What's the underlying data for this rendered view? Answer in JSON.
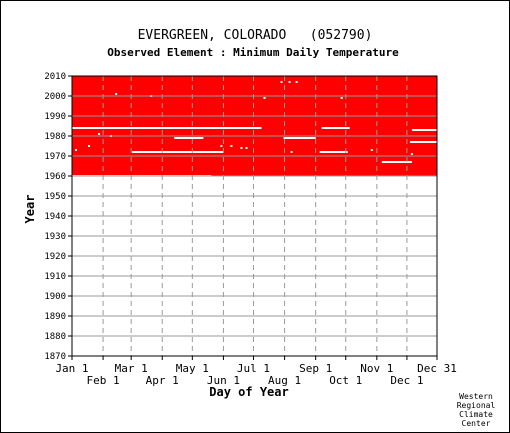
{
  "chart_data": {
    "type": "heatmap",
    "title": "EVERGREEN, COLORADO   (052790)",
    "subtitle": "Observed Element : Minimum Daily Temperature",
    "xlabel": "Day of Year",
    "ylabel": "Year",
    "x_ticks_upper": [
      "Jan 1",
      "Mar 1",
      "May 1",
      "Jul 1",
      "Sep 1",
      "Nov 1",
      "Dec 31"
    ],
    "x_ticks_upper_day": [
      1,
      60,
      121,
      182,
      244,
      305,
      365
    ],
    "x_ticks_lower": [
      "Feb 1",
      "Apr 1",
      "Jun 1",
      "Aug 1",
      "Oct 1",
      "Dec 1"
    ],
    "x_ticks_lower_day": [
      32,
      91,
      152,
      213,
      274,
      335
    ],
    "xlim": [
      1,
      365
    ],
    "ylim": [
      1870,
      2010
    ],
    "y_ticks": [
      1870,
      1880,
      1890,
      1900,
      1910,
      1920,
      1930,
      1940,
      1950,
      1960,
      1970,
      1980,
      1990,
      2000,
      2010
    ],
    "grid": true,
    "data_color": "#ff0000",
    "missing_color": "#ffffff",
    "data_years": [
      1960,
      2010
    ],
    "missing_segments": [
      {
        "year": 1984,
        "start_day": 1,
        "end_day": 190
      },
      {
        "year": 1984,
        "start_day": 250,
        "end_day": 278
      },
      {
        "year": 1983,
        "start_day": 340,
        "end_day": 365
      },
      {
        "year": 1979,
        "start_day": 103,
        "end_day": 132
      },
      {
        "year": 1979,
        "start_day": 212,
        "end_day": 244
      },
      {
        "year": 1977,
        "start_day": 338,
        "end_day": 365
      },
      {
        "year": 1972,
        "start_day": 61,
        "end_day": 152
      },
      {
        "year": 1972,
        "start_day": 248,
        "end_day": 276
      },
      {
        "year": 1967,
        "start_day": 310,
        "end_day": 340
      },
      {
        "year": 1960,
        "start_day": 1,
        "end_day": 140
      }
    ],
    "missing_points": [
      {
        "year": 2007,
        "day": 210
      },
      {
        "year": 2007,
        "day": 218
      },
      {
        "year": 2007,
        "day": 225
      },
      {
        "year": 2001,
        "day": 45
      },
      {
        "year": 2000,
        "day": 80
      },
      {
        "year": 1999,
        "day": 193
      },
      {
        "year": 1999,
        "day": 270
      },
      {
        "year": 1981,
        "day": 28
      },
      {
        "year": 1980,
        "day": 40
      },
      {
        "year": 1975,
        "day": 18
      },
      {
        "year": 1975,
        "day": 150
      },
      {
        "year": 1975,
        "day": 160
      },
      {
        "year": 1974,
        "day": 170
      },
      {
        "year": 1974,
        "day": 175
      },
      {
        "year": 1973,
        "day": 5
      },
      {
        "year": 1973,
        "day": 300
      },
      {
        "year": 1972,
        "day": 220
      },
      {
        "year": 1971,
        "day": 340
      }
    ]
  },
  "credit": [
    "Western",
    "Regional",
    "Climate",
    "Center"
  ]
}
